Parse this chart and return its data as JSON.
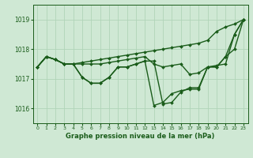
{
  "xlabel": "Graphe pression niveau de la mer (hPa)",
  "xlim": [
    -0.5,
    23.5
  ],
  "ylim": [
    1015.5,
    1019.5
  ],
  "yticks": [
    1016,
    1017,
    1018,
    1019
  ],
  "xticks": [
    0,
    1,
    2,
    3,
    4,
    5,
    6,
    7,
    8,
    9,
    10,
    11,
    12,
    13,
    14,
    15,
    16,
    17,
    18,
    19,
    20,
    21,
    22,
    23
  ],
  "bg_color": "#cfe8d4",
  "grid_color": "#b0d4b8",
  "line_color": "#1a5c1a",
  "line_width": 1.0,
  "marker": "D",
  "marker_size": 2.0,
  "curves": [
    {
      "x": [
        0,
        1,
        2,
        3,
        4,
        5,
        6,
        7,
        8,
        9,
        10,
        11,
        12,
        13,
        14,
        15,
        16,
        17,
        18,
        19,
        20,
        21,
        22,
        23
      ],
      "y": [
        1017.4,
        1017.75,
        1017.65,
        1017.5,
        1017.5,
        1017.05,
        1016.85,
        1016.85,
        1017.05,
        1017.4,
        1017.4,
        1017.5,
        1017.6,
        1016.1,
        1016.2,
        1016.5,
        1016.6,
        1016.65,
        1016.65,
        1017.4,
        1017.4,
        1017.75,
        1018.0,
        1019.0
      ]
    },
    {
      "x": [
        0,
        1,
        2,
        3,
        4,
        5,
        6,
        7,
        8,
        9,
        10,
        11,
        12,
        13,
        14,
        15,
        16,
        17,
        18,
        19,
        20,
        21,
        22,
        23
      ],
      "y": [
        1017.4,
        1017.75,
        1017.65,
        1017.5,
        1017.5,
        1017.5,
        1017.5,
        1017.5,
        1017.55,
        1017.6,
        1017.65,
        1017.7,
        1017.75,
        1017.5,
        1017.4,
        1017.45,
        1017.5,
        1017.15,
        1017.2,
        1017.4,
        1017.45,
        1017.5,
        1018.5,
        1019.0
      ]
    },
    {
      "x": [
        0,
        1,
        2,
        3,
        4,
        5,
        6,
        7,
        8,
        9,
        10,
        11,
        12,
        13,
        14,
        15,
        16,
        17,
        18,
        19,
        20,
        21,
        22,
        23
      ],
      "y": [
        1017.4,
        1017.75,
        1017.65,
        1017.5,
        1017.5,
        1017.55,
        1017.6,
        1017.65,
        1017.7,
        1017.75,
        1017.8,
        1017.85,
        1017.9,
        1017.95,
        1018.0,
        1018.05,
        1018.1,
        1018.15,
        1018.2,
        1018.3,
        1018.6,
        1018.75,
        1018.85,
        1019.0
      ]
    },
    {
      "x": [
        0,
        1,
        2,
        3,
        4,
        5,
        6,
        7,
        8,
        9,
        10,
        11,
        12,
        13,
        14,
        15,
        16,
        17,
        18,
        19,
        20,
        21,
        22,
        23
      ],
      "y": [
        1017.4,
        1017.75,
        1017.65,
        1017.5,
        1017.5,
        1017.05,
        1016.85,
        1016.85,
        1017.05,
        1017.4,
        1017.4,
        1017.5,
        1017.6,
        1017.6,
        1016.15,
        1016.2,
        1016.55,
        1016.7,
        1016.7,
        1017.4,
        1017.4,
        1017.75,
        1018.5,
        1019.0
      ]
    }
  ]
}
